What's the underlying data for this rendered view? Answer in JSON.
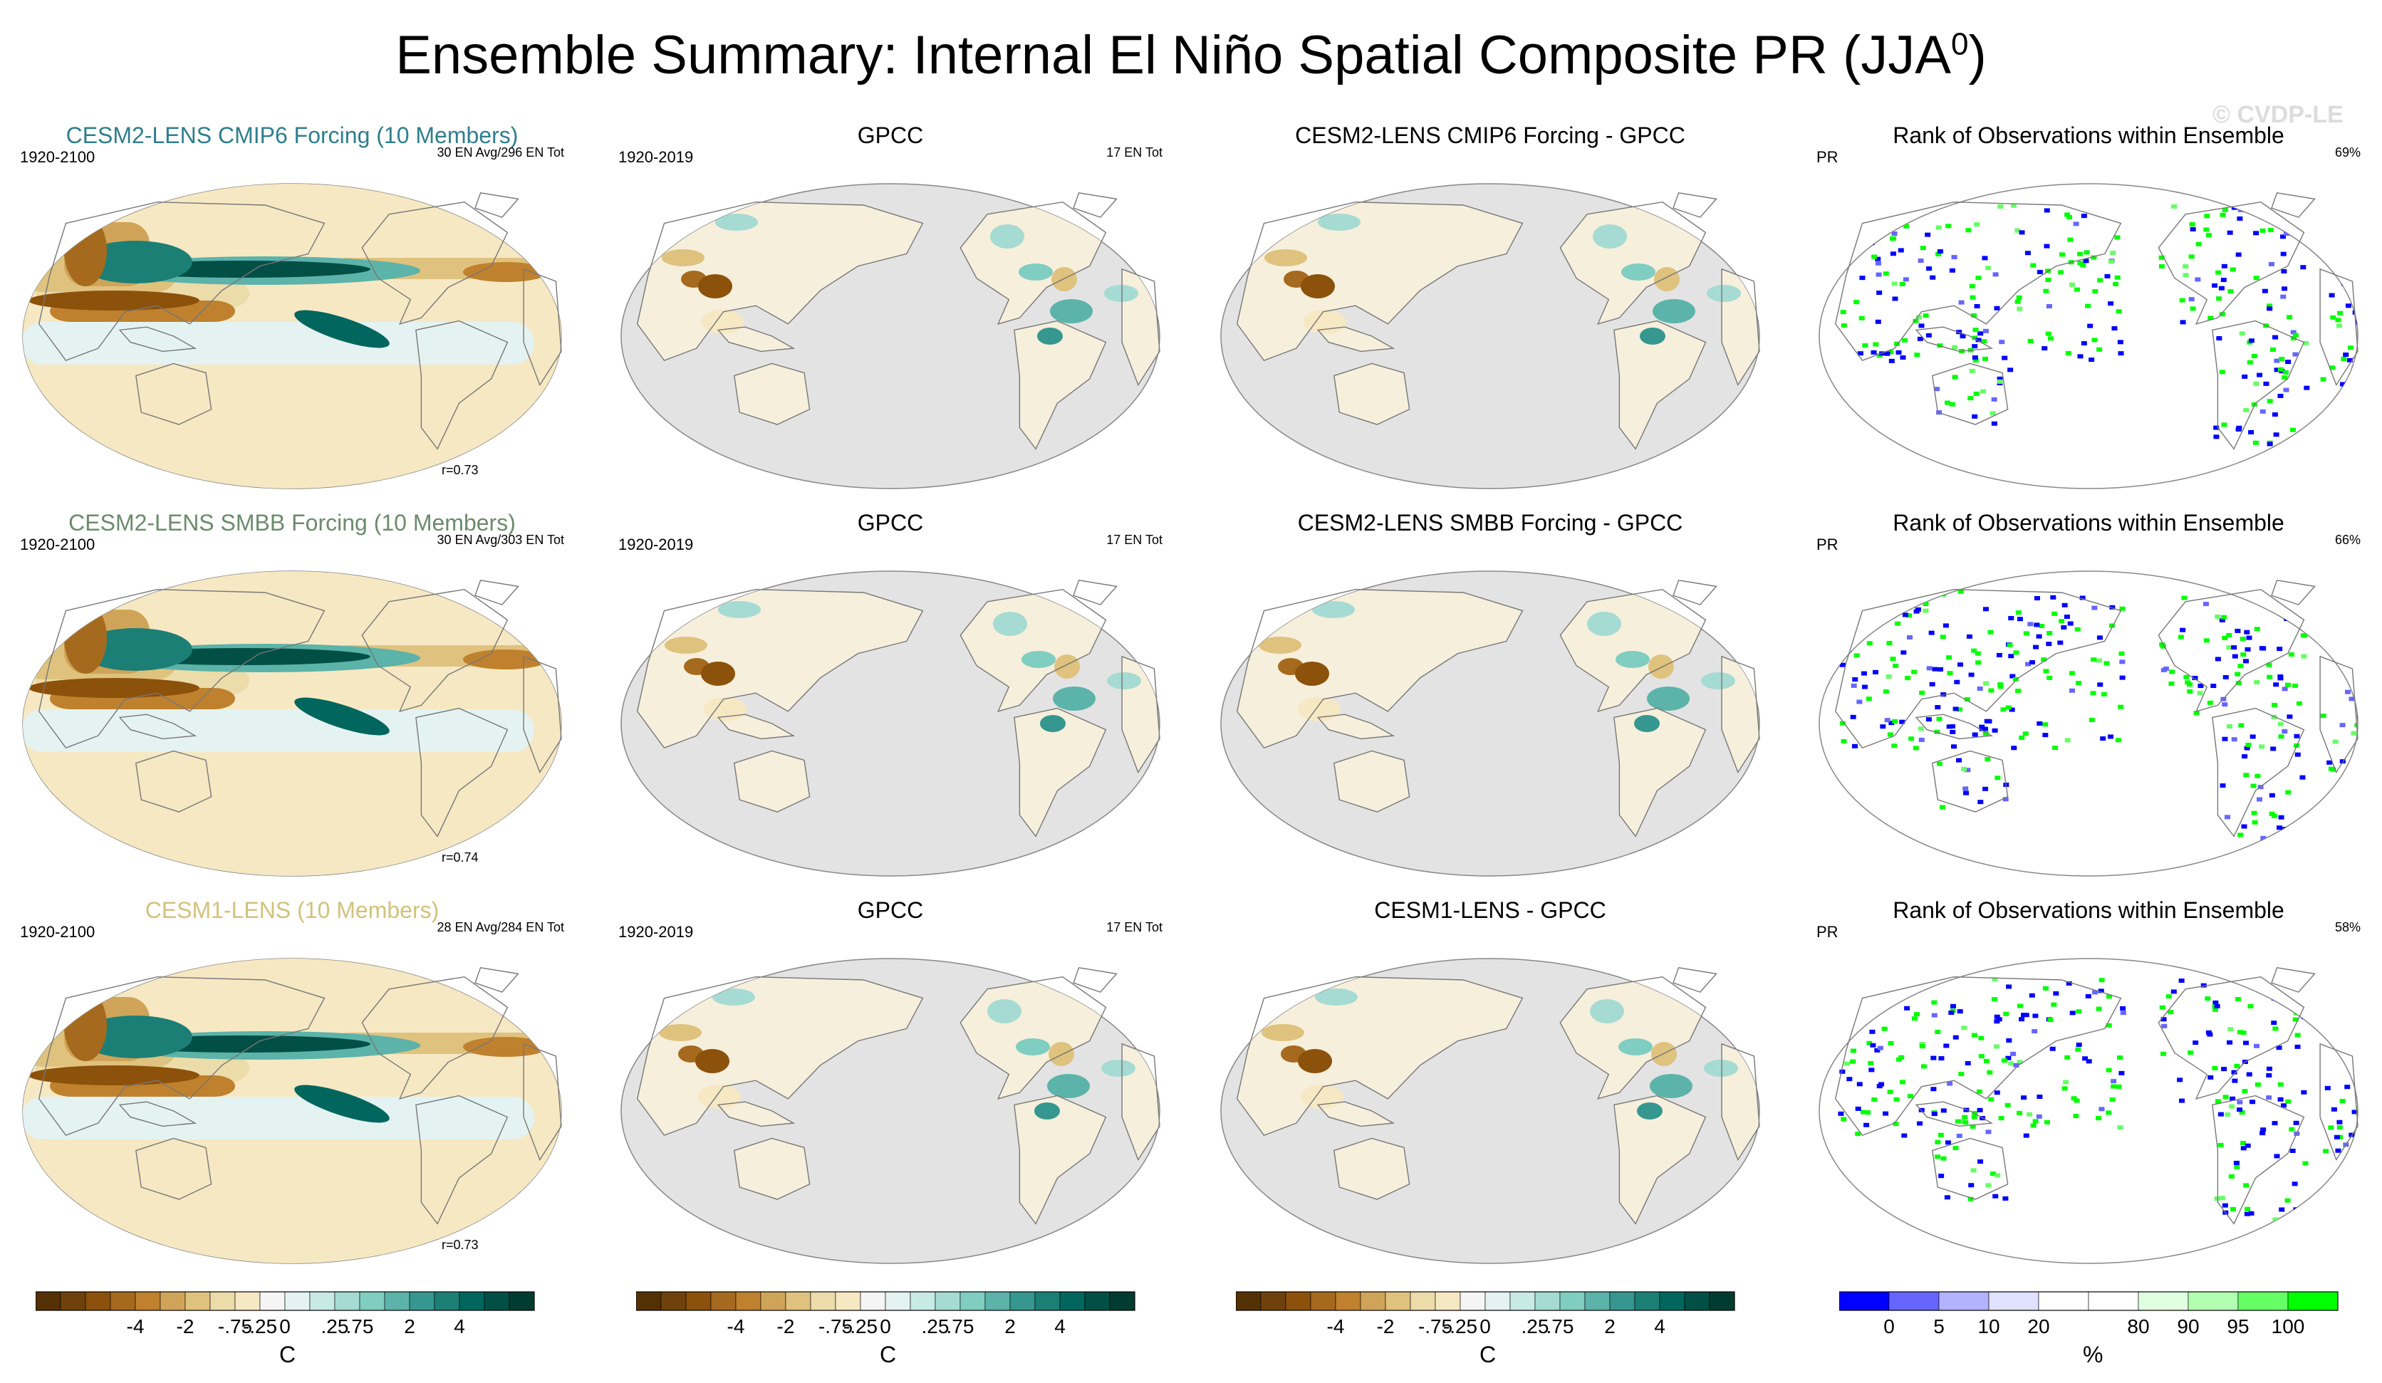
{
  "title": "Ensemble Summary: Internal El Niño Spatial Composite PR (JJA",
  "title_sup": "0",
  "title_end": ")",
  "watermark": "© CVDP-LE",
  "colors": {
    "model_title_row1": "#2f7f8c",
    "model_title_row2": "#6d8a6e",
    "model_title_row3": "#d2c27c",
    "ocean_grey": "#e3e3e3",
    "rank_low": "#0000ff",
    "rank_high": "#00ff00"
  },
  "rows": [
    {
      "model": {
        "title": "CESM2-LENS CMIP6 Forcing (10 Members)",
        "period": "1920-2100",
        "count": "30 EN Avg/296 EN Tot",
        "corr": "r=0.73"
      },
      "obs": {
        "title": "GPCC",
        "period": "1920-2019",
        "count": "17 EN Tot"
      },
      "diff": {
        "title": "CESM2-LENS CMIP6 Forcing - GPCC"
      },
      "rank": {
        "title": "Rank of Observations within Ensemble",
        "var": "PR",
        "pct": "69%"
      }
    },
    {
      "model": {
        "title": "CESM2-LENS SMBB Forcing (10 Members)",
        "period": "1920-2100",
        "count": "30 EN Avg/303 EN Tot",
        "corr": "r=0.74"
      },
      "obs": {
        "title": "GPCC",
        "period": "1920-2019",
        "count": "17 EN Tot"
      },
      "diff": {
        "title": "CESM2-LENS SMBB Forcing - GPCC"
      },
      "rank": {
        "title": "Rank of Observations within Ensemble",
        "var": "PR",
        "pct": "66%"
      }
    },
    {
      "model": {
        "title": "CESM1-LENS (10 Members)",
        "period": "1920-2100",
        "count": "28 EN Avg/284 EN Tot",
        "corr": "r=0.73"
      },
      "obs": {
        "title": "GPCC",
        "period": "1920-2019",
        "count": "17 EN Tot"
      },
      "diff": {
        "title": "CESM1-LENS - GPCC"
      },
      "rank": {
        "title": "Rank of Observations within Ensemble",
        "var": "PR",
        "pct": "58%"
      }
    }
  ],
  "colorbars": {
    "pr": {
      "unit": "C",
      "colors": [
        "#543005",
        "#6f420d",
        "#8c510a",
        "#a66a1e",
        "#bf812d",
        "#d0a458",
        "#dfc27d",
        "#ecdcaa",
        "#f6e8c3",
        "#f5f5f5",
        "#e4f3f1",
        "#c7eae5",
        "#a5dbd2",
        "#80cdc1",
        "#5cb3a9",
        "#35978f",
        "#1b7f76",
        "#01665e",
        "#014f45",
        "#003c30"
      ],
      "ticks": [
        "-4",
        "-2",
        "-.75",
        "-.25",
        "0",
        ".25",
        ".75",
        "2",
        "4"
      ]
    },
    "rank": {
      "unit": "%",
      "colors": [
        "#0000ff",
        "#6666ff",
        "#b2b2ff",
        "#e0e0ff",
        "#ffffff",
        "#ffffff",
        "#e0ffe0",
        "#b2ffb2",
        "#66ff66",
        "#00ff00"
      ],
      "ticks": [
        "0",
        "5",
        "10",
        "20",
        "80",
        "90",
        "95",
        "100"
      ]
    }
  },
  "chart_data": [
    {
      "type": "heatmap",
      "panel": "row1-model",
      "title": "CESM2-LENS CMIP6 Forcing (10 Members)",
      "period": "1920-2100",
      "n_events": "30 EN Avg/296 EN Tot",
      "pattern_correlation": 0.73,
      "units": "C"
    },
    {
      "type": "heatmap",
      "panel": "row1-obs",
      "title": "GPCC",
      "period": "1920-2019",
      "n_events": "17 EN Tot",
      "units": "C"
    },
    {
      "type": "heatmap",
      "panel": "row1-diff",
      "title": "CESM2-LENS CMIP6 Forcing - GPCC",
      "units": "C"
    },
    {
      "type": "heatmap",
      "panel": "row1-rank",
      "title": "Rank of Observations within Ensemble",
      "variable": "PR",
      "percent": 69,
      "units": "%"
    },
    {
      "type": "heatmap",
      "panel": "row2-model",
      "title": "CESM2-LENS SMBB Forcing (10 Members)",
      "period": "1920-2100",
      "n_events": "30 EN Avg/303 EN Tot",
      "pattern_correlation": 0.74,
      "units": "C"
    },
    {
      "type": "heatmap",
      "panel": "row2-obs",
      "title": "GPCC",
      "period": "1920-2019",
      "n_events": "17 EN Tot",
      "units": "C"
    },
    {
      "type": "heatmap",
      "panel": "row2-diff",
      "title": "CESM2-LENS SMBB Forcing - GPCC",
      "units": "C"
    },
    {
      "type": "heatmap",
      "panel": "row2-rank",
      "title": "Rank of Observations within Ensemble",
      "variable": "PR",
      "percent": 66,
      "units": "%"
    },
    {
      "type": "heatmap",
      "panel": "row3-model",
      "title": "CESM1-LENS (10 Members)",
      "period": "1920-2100",
      "n_events": "28 EN Avg/284 EN Tot",
      "pattern_correlation": 0.73,
      "units": "C"
    },
    {
      "type": "heatmap",
      "panel": "row3-obs",
      "title": "GPCC",
      "period": "1920-2019",
      "n_events": "17 EN Tot",
      "units": "C"
    },
    {
      "type": "heatmap",
      "panel": "row3-diff",
      "title": "CESM1-LENS - GPCC",
      "units": "C"
    },
    {
      "type": "heatmap",
      "panel": "row3-rank",
      "title": "Rank of Observations within Ensemble",
      "variable": "PR",
      "percent": 58,
      "units": "%"
    }
  ]
}
